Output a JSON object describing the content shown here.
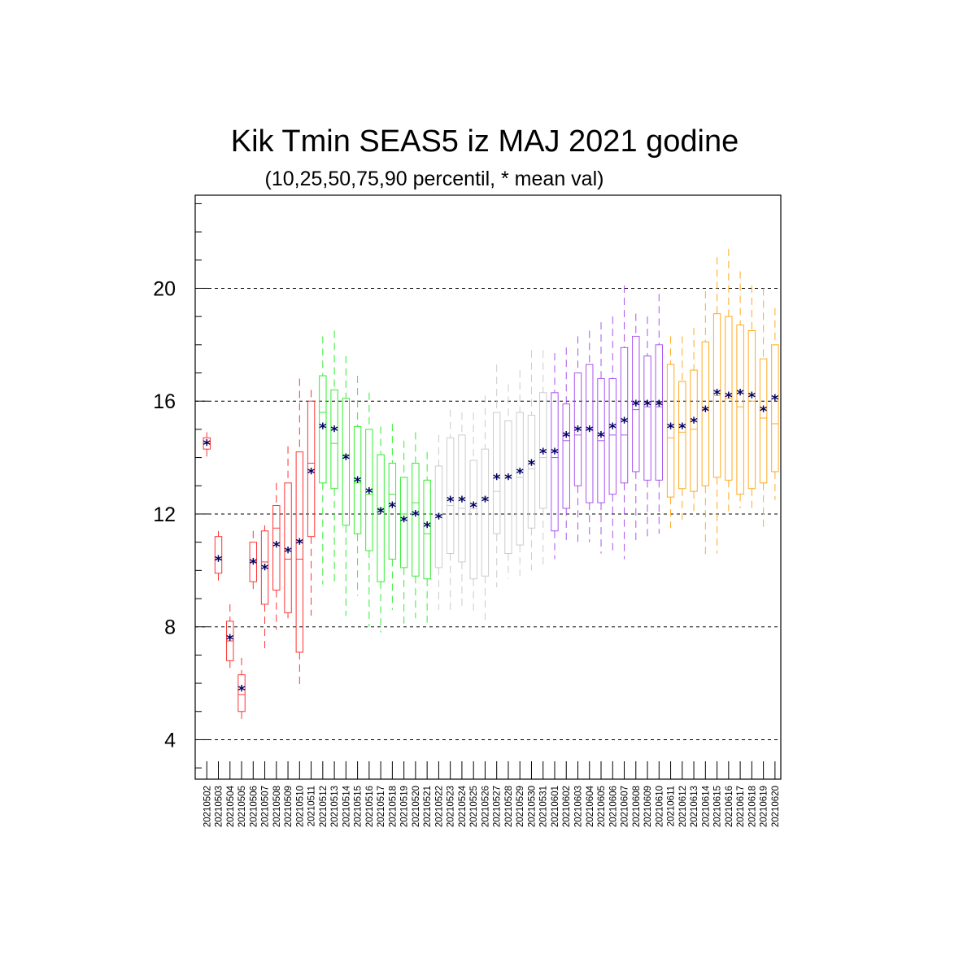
{
  "chart_data": {
    "type": "box",
    "title": "Kik Tmin SEAS5 iz MAJ 2021 godine",
    "subtitle": "(10,25,50,75,90 percentil, * mean val)",
    "xlabel": "",
    "ylabel": "",
    "ylim": [
      2.6,
      23.3
    ],
    "yticks": [
      4,
      8,
      12,
      16,
      20
    ],
    "ytick_labels": [
      "4",
      "8",
      "12",
      "16",
      "20"
    ],
    "grid": "horizontal dashed at major ticks",
    "mean_marker": "*",
    "mean_color": "#000066",
    "categories": [
      "20210502",
      "20210503",
      "20210504",
      "20210505",
      "20210506",
      "20210507",
      "20210508",
      "20210509",
      "20210510",
      "20210511",
      "20210512",
      "20210513",
      "20210514",
      "20210515",
      "20210516",
      "20210517",
      "20210518",
      "20210519",
      "20210520",
      "20210521",
      "20210522",
      "20210523",
      "20210524",
      "20210525",
      "20210526",
      "20210527",
      "20210528",
      "20210529",
      "20210530",
      "20210531",
      "20210601",
      "20210602",
      "20210603",
      "20210604",
      "20210605",
      "20210606",
      "20210607",
      "20210608",
      "20210609",
      "20210610",
      "20210611",
      "20210612",
      "20210613",
      "20210614",
      "20210615",
      "20210616",
      "20210617",
      "20210618",
      "20210619",
      "20210620"
    ],
    "colors": {
      "red": "#ff3333",
      "green": "#33ee33",
      "gray": "#cccccc",
      "purple": "#aa55ee",
      "orange": "#ffaa22"
    },
    "color_groups": [
      "red",
      "red",
      "red",
      "red",
      "red",
      "red",
      "red",
      "red",
      "red",
      "red",
      "green",
      "green",
      "green",
      "green",
      "green",
      "green",
      "green",
      "green",
      "green",
      "green",
      "gray",
      "gray",
      "gray",
      "gray",
      "gray",
      "gray",
      "gray",
      "gray",
      "gray",
      "gray",
      "purple",
      "purple",
      "purple",
      "purple",
      "purple",
      "purple",
      "purple",
      "purple",
      "purple",
      "purple",
      "orange",
      "orange",
      "orange",
      "orange",
      "orange",
      "orange",
      "orange",
      "orange",
      "orange",
      "orange"
    ],
    "p10": [
      14.0,
      9.5,
      6.5,
      4.7,
      9.3,
      7.2,
      7.9,
      8.3,
      5.8,
      8.4,
      9.5,
      9.6,
      8.4,
      9.1,
      8.0,
      7.8,
      8.6,
      8.1,
      8.3,
      8.1,
      8.6,
      8.6,
      8.7,
      8.4,
      8.2,
      9.4,
      9.7,
      9.8,
      10.0,
      10.2,
      10.4,
      11.0,
      11.0,
      11.0,
      10.6,
      10.7,
      10.4,
      11.0,
      11.1,
      11.3,
      11.5,
      11.8,
      11.9,
      10.5,
      10.6,
      12.1,
      12.2,
      12.2,
      11.5,
      12.5
    ],
    "p25": [
      14.3,
      9.9,
      6.8,
      5.0,
      9.6,
      8.8,
      9.3,
      8.5,
      7.1,
      11.2,
      13.1,
      12.9,
      11.6,
      11.3,
      10.7,
      9.6,
      10.4,
      10.1,
      9.8,
      9.7,
      10.1,
      10.6,
      10.3,
      9.7,
      9.8,
      11.3,
      10.6,
      10.9,
      11.5,
      12.2,
      11.4,
      12.2,
      13.0,
      12.4,
      12.4,
      12.7,
      13.1,
      13.5,
      13.2,
      13.2,
      12.6,
      12.9,
      12.8,
      13.0,
      13.3,
      13.2,
      12.7,
      12.9,
      13.1,
      13.5
    ],
    "p50": [
      14.5,
      10.4,
      7.5,
      5.6,
      10.3,
      10.3,
      11.5,
      10.4,
      10.4,
      13.8,
      15.6,
      14.5,
      14.1,
      13.1,
      12.7,
      12.2,
      12.7,
      12.0,
      12.4,
      11.3,
      12.0,
      12.3,
      12.2,
      12.2,
      12.6,
      12.8,
      13.3,
      13.3,
      13.6,
      14.0,
      14.0,
      14.6,
      14.8,
      15.0,
      14.6,
      14.8,
      14.8,
      15.7,
      15.8,
      15.8,
      14.7,
      14.9,
      15.0,
      15.7,
      16.2,
      16.1,
      15.8,
      16.0,
      15.4,
      15.2
    ],
    "p75": [
      14.7,
      11.2,
      8.2,
      6.3,
      11.0,
      11.4,
      12.3,
      13.1,
      14.2,
      16.0,
      16.9,
      16.4,
      16.1,
      15.1,
      15.0,
      14.1,
      13.8,
      13.3,
      13.8,
      13.2,
      13.7,
      14.7,
      14.8,
      13.9,
      14.3,
      15.6,
      15.3,
      15.6,
      15.5,
      16.3,
      16.3,
      15.9,
      17.0,
      17.3,
      16.8,
      16.8,
      17.9,
      18.3,
      17.6,
      18.0,
      17.3,
      16.7,
      17.1,
      18.1,
      19.1,
      19.0,
      18.7,
      18.5,
      17.5,
      18.0
    ],
    "p90": [
      14.9,
      11.4,
      8.8,
      6.9,
      11.4,
      11.6,
      13.1,
      14.4,
      16.8,
      16.4,
      18.3,
      18.5,
      17.6,
      16.9,
      16.3,
      15.1,
      15.2,
      14.6,
      14.9,
      14.2,
      14.8,
      15.7,
      15.6,
      15.6,
      16.2,
      17.3,
      16.6,
      17.1,
      17.8,
      17.8,
      17.7,
      17.9,
      18.3,
      18.5,
      18.8,
      19.0,
      20.1,
      19.1,
      19.0,
      19.8,
      18.3,
      18.3,
      18.6,
      19.9,
      21.1,
      21.4,
      20.6,
      20.1,
      20.0,
      19.3
    ],
    "mean": [
      14.5,
      10.4,
      7.6,
      5.8,
      10.3,
      10.1,
      10.9,
      10.7,
      11.0,
      13.5,
      15.1,
      15.0,
      14.0,
      13.2,
      12.8,
      12.1,
      12.3,
      11.8,
      12.0,
      11.6,
      11.9,
      12.5,
      12.5,
      12.3,
      12.5,
      13.3,
      13.3,
      13.5,
      13.8,
      14.2,
      14.2,
      14.8,
      15.0,
      15.0,
      14.8,
      15.1,
      15.3,
      15.9,
      15.9,
      15.9,
      15.1,
      15.1,
      15.3,
      15.7,
      16.3,
      16.2,
      16.3,
      16.2,
      15.7,
      16.1
    ]
  }
}
